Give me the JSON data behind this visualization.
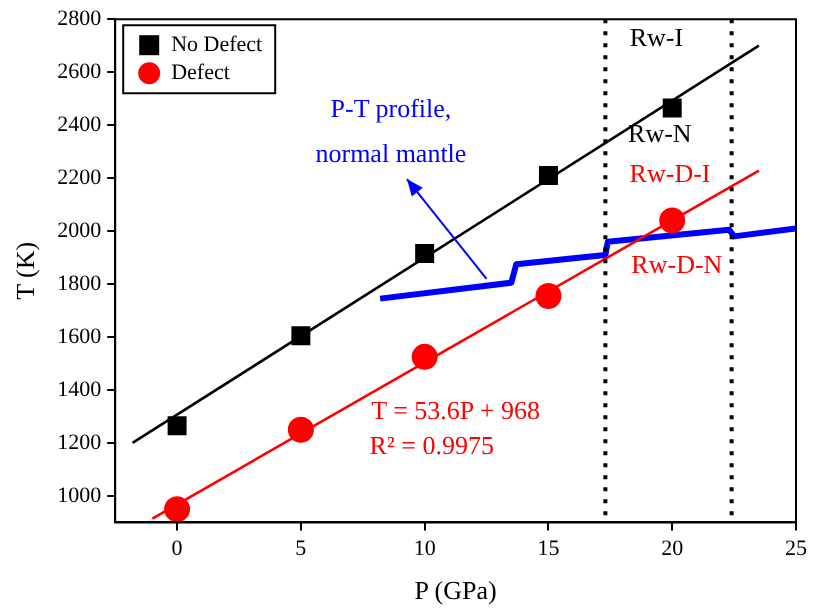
{
  "chart_data": {
    "type": "scatter",
    "xlabel": "P (GPa)",
    "ylabel": "T (K)",
    "xlim": [
      -2.5,
      25
    ],
    "xticks": [
      0,
      5,
      10,
      15,
      20,
      25
    ],
    "ylim": [
      900,
      2800
    ],
    "yticks": [
      1000,
      1200,
      1400,
      1600,
      1800,
      2000,
      2200,
      2400,
      2600,
      2800
    ],
    "grid": false,
    "legend": "top left",
    "series": [
      {
        "name": "No Defect",
        "color": "#000000",
        "marker": "square",
        "x": [
          0,
          5,
          10,
          15,
          20
        ],
        "values": [
          1265,
          1605,
          1915,
          2210,
          2465
        ]
      },
      {
        "name": "Defect",
        "color": "#ff0000",
        "marker": "circle",
        "x": [
          0,
          5,
          10,
          15,
          20
        ],
        "values": [
          950,
          1250,
          1525,
          1755,
          2040
        ]
      },
      {
        "type": "line",
        "color": "#000000",
        "marker": "none",
        "x": [
          -1.8,
          23.5
        ],
        "values": [
          1200,
          2700
        ]
      },
      {
        "type": "line",
        "color": "#ff0000",
        "marker": "none",
        "x": [
          -1,
          23.5
        ],
        "values": [
          914,
          2228
        ]
      },
      {
        "type": "line",
        "color": "#0000ff",
        "marker": "none",
        "x": [
          8.2,
          13.5,
          13.7,
          17.3,
          17.4,
          22.3,
          22.5,
          25
        ],
        "values": [
          1745,
          1805,
          1875,
          1910,
          1960,
          2005,
          1980,
          2010
        ]
      }
    ],
    "ref_lines": [
      {
        "axis": "x",
        "value": 17.3,
        "color": "#000000",
        "line_style": "dotted"
      },
      {
        "axis": "x",
        "value": 22.4,
        "color": "#000000",
        "line_style": "dotted"
      }
    ],
    "annotations": [
      "Rw-I",
      "Rw-N",
      "Rw-D-I",
      "Rw-D-N",
      "P-T profile,",
      {
        "text": "normal mantle",
        "x": 12.5,
        "y": 1797
      },
      "T = 53.6P + 968",
      "R² = 0.9975"
    ]
  }
}
